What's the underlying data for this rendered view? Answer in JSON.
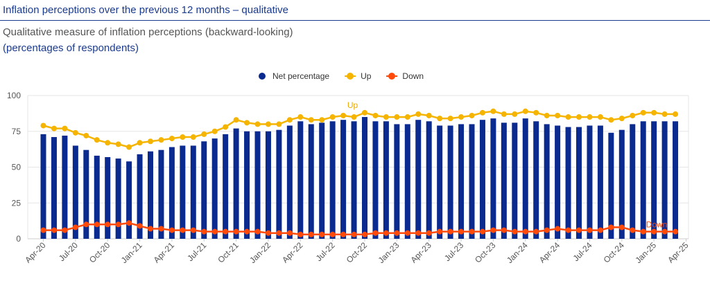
{
  "header": {
    "title": "Inflation perceptions over the previous 12 months – qualitative",
    "subtitle": "Qualitative measure of inflation perceptions (backward-looking)",
    "units": "(percentages of respondents)"
  },
  "colors": {
    "bar": "#0b2a8f",
    "up": "#f5b400",
    "down": "#ff4a0a",
    "grid": "#e6e6e6"
  },
  "chart_data": {
    "type": "bar+line",
    "title": "",
    "ylim": [
      0,
      100
    ],
    "yticks": [
      0,
      25,
      50,
      75,
      100
    ],
    "grid": true,
    "legend_position": "top",
    "categories": [
      "Apr-20",
      "May-20",
      "Jun-20",
      "Jul-20",
      "Aug-20",
      "Sep-20",
      "Oct-20",
      "Nov-20",
      "Dec-20",
      "Jan-21",
      "Feb-21",
      "Mar-21",
      "Apr-21",
      "May-21",
      "Jun-21",
      "Jul-21",
      "Aug-21",
      "Sep-21",
      "Oct-21",
      "Nov-21",
      "Dec-21",
      "Jan-22",
      "Feb-22",
      "Mar-22",
      "Apr-22",
      "May-22",
      "Jun-22",
      "Jul-22",
      "Aug-22",
      "Sep-22",
      "Oct-22",
      "Nov-22",
      "Dec-22",
      "Jan-23",
      "Feb-23",
      "Mar-23",
      "Apr-23",
      "May-23",
      "Jun-23",
      "Jul-23",
      "Aug-23",
      "Sep-23",
      "Oct-23",
      "Nov-23",
      "Dec-23",
      "Jan-24",
      "Feb-24",
      "Mar-24",
      "Apr-24",
      "May-24",
      "Jun-24",
      "Jul-24",
      "Aug-24",
      "Sep-24",
      "Oct-24",
      "Nov-24",
      "Dec-24",
      "Jan-25",
      "Feb-25",
      "Mar-25"
    ],
    "xtick_labels": [
      "Apr-20",
      "Jul-20",
      "Oct-20",
      "Jan-21",
      "Apr-21",
      "Jul-21",
      "Oct-21",
      "Jan-22",
      "Apr-22",
      "Jul-22",
      "Oct-22",
      "Jan-23",
      "Apr-23",
      "Jul-23",
      "Oct-23",
      "Jan-24",
      "Apr-24",
      "Jul-24",
      "Oct-24",
      "Jan-25",
      "Apr-25"
    ],
    "series": [
      {
        "name": "Net percentage",
        "type": "bar",
        "values": [
          73,
          71,
          72,
          65,
          62,
          58,
          57,
          56,
          54,
          59,
          61,
          62,
          64,
          65,
          65,
          68,
          70,
          73,
          77,
          75,
          75,
          75,
          76,
          79,
          82,
          80,
          81,
          82,
          83,
          82,
          85,
          82,
          82,
          80,
          80,
          83,
          82,
          79,
          79,
          80,
          80,
          83,
          84,
          81,
          81,
          84,
          82,
          80,
          79,
          78,
          78,
          79,
          79,
          74,
          76,
          80,
          82,
          82,
          82,
          82
        ]
      },
      {
        "name": "Up",
        "type": "line",
        "values": [
          79,
          77,
          77,
          74,
          72,
          69,
          67,
          66,
          64,
          67,
          68,
          69,
          70,
          71,
          71,
          73,
          75,
          78,
          83,
          81,
          80,
          80,
          80,
          83,
          85,
          83,
          83,
          85,
          86,
          85,
          88,
          86,
          85,
          85,
          85,
          87,
          86,
          84,
          84,
          85,
          86,
          88,
          89,
          87,
          87,
          89,
          88,
          86,
          86,
          85,
          85,
          85,
          85,
          83,
          84,
          86,
          88,
          88,
          87,
          87
        ]
      },
      {
        "name": "Down",
        "type": "line",
        "values": [
          6,
          6,
          6,
          8,
          10,
          10,
          10,
          10,
          11,
          9,
          7,
          7,
          6,
          6,
          6,
          5,
          5,
          5,
          5,
          5,
          5,
          4,
          4,
          4,
          3,
          3,
          3,
          3,
          3,
          3,
          3,
          4,
          4,
          4,
          4,
          4,
          4,
          5,
          5,
          5,
          5,
          5,
          6,
          6,
          5,
          5,
          5,
          6,
          7,
          6,
          6,
          6,
          6,
          8,
          8,
          6,
          5,
          5,
          5,
          5
        ]
      }
    ],
    "annotations": [
      {
        "text": "Up",
        "series": "Up"
      },
      {
        "text": "Down",
        "series": "Down"
      }
    ]
  }
}
